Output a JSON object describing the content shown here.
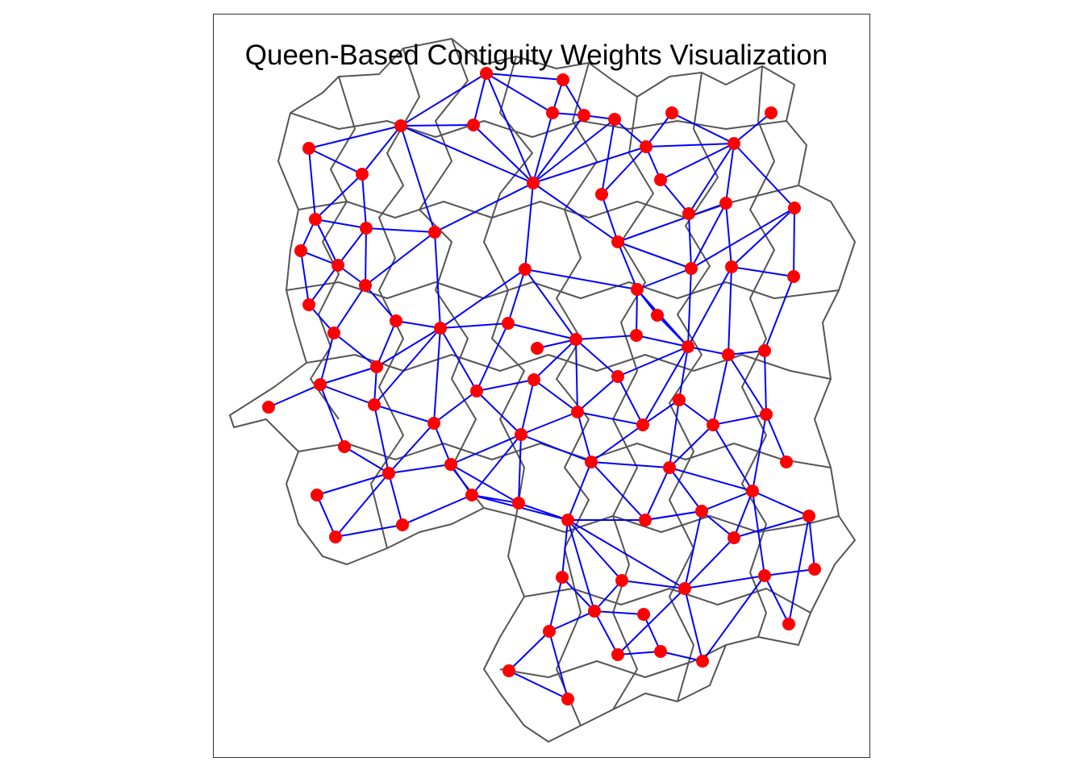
{
  "title": "Queen-Based Contiguity Weights Visualization",
  "colors": {
    "node": "#ff0000",
    "link": "#0000ff",
    "boundary": "#555555",
    "panel_border": "#333333",
    "background": "#ffffff"
  },
  "legend": "none",
  "graph": {
    "node_count": 104,
    "edge_type": "queen-contiguity"
  }
}
